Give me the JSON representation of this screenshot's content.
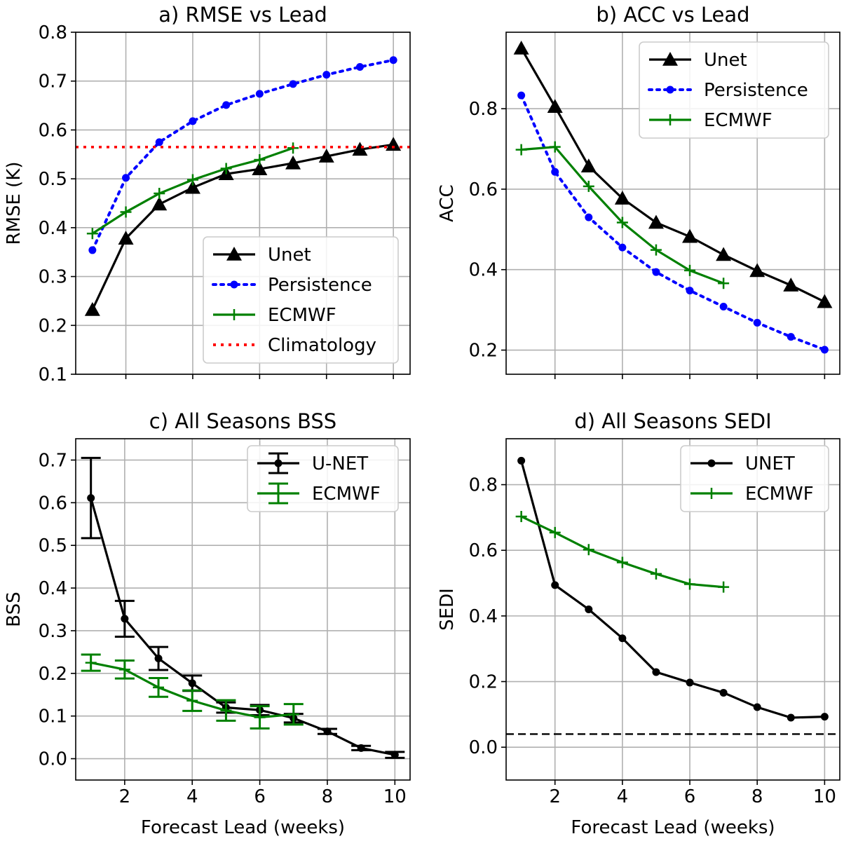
{
  "figure": {
    "xlabel_bottom": "Forecast Lead (weeks)"
  },
  "chart_data": [
    {
      "id": "a",
      "type": "line",
      "title": "a) RMSE vs Lead",
      "xlabel": "",
      "ylabel": "RMSE (K)",
      "xlim": [
        0.5,
        10.5
      ],
      "ylim": [
        0.1,
        0.8
      ],
      "xticks": [
        2,
        4,
        6,
        8,
        10
      ],
      "xtick_labels_visible": false,
      "yticks": [
        0.1,
        0.2,
        0.3,
        0.4,
        0.5,
        0.6,
        0.7,
        0.8
      ],
      "ytick_labels": [
        "0.1",
        "0.2",
        "0.3",
        "0.4",
        "0.5",
        "0.6",
        "0.7",
        "0.8"
      ],
      "grid": true,
      "legend_position": "lower-right",
      "series": [
        {
          "name": "Unet",
          "style": "solid-triangle",
          "color": "#000000",
          "x": [
            1.0,
            2.0,
            3.0,
            4.0,
            5.0,
            6.0,
            7.0,
            8.0,
            9.0,
            10.0
          ],
          "y": [
            0.232,
            0.378,
            0.448,
            0.482,
            0.51,
            0.52,
            0.532,
            0.546,
            0.56,
            0.57
          ]
        },
        {
          "name": "Persistence",
          "style": "dotted-circle",
          "color": "#0000ff",
          "x": [
            1.0,
            2.0,
            3.0,
            4.0,
            5.0,
            6.0,
            7.0,
            8.0,
            9.0,
            10.0
          ],
          "y": [
            0.354,
            0.502,
            0.575,
            0.618,
            0.651,
            0.674,
            0.694,
            0.713,
            0.729,
            0.743
          ]
        },
        {
          "name": "ECMWF",
          "style": "solid-plus",
          "color": "#008000",
          "x": [
            1.0,
            2.0,
            3.0,
            4.0,
            5.0,
            6.0,
            7.0
          ],
          "y": [
            0.388,
            0.432,
            0.47,
            0.498,
            0.521,
            0.539,
            0.563
          ]
        },
        {
          "name": "Climatology",
          "style": "dotted-hline",
          "color": "#ff0000",
          "x": [
            0.5,
            10.5
          ],
          "y": [
            0.565,
            0.565
          ]
        }
      ]
    },
    {
      "id": "b",
      "type": "line",
      "title": "b) ACC vs Lead",
      "xlabel": "",
      "ylabel": "ACC",
      "xlim": [
        0.55,
        10.45
      ],
      "ylim": [
        0.14,
        0.99
      ],
      "xticks": [
        2,
        4,
        6,
        8,
        10
      ],
      "xtick_labels_visible": false,
      "yticks": [
        0.2,
        0.4,
        0.6,
        0.8
      ],
      "ytick_labels": [
        "0.2",
        "0.4",
        "0.6",
        "0.8"
      ],
      "grid": true,
      "legend_position": "top-right",
      "series": [
        {
          "name": "Unet",
          "style": "solid-triangle",
          "color": "#000000",
          "x": [
            1,
            2,
            3,
            4,
            5,
            6,
            7,
            8,
            9,
            10
          ],
          "y": [
            0.95,
            0.805,
            0.657,
            0.577,
            0.517,
            0.482,
            0.437,
            0.397,
            0.361,
            0.32
          ]
        },
        {
          "name": "Persistence",
          "style": "dotted-circle",
          "color": "#0000ff",
          "x": [
            1,
            2,
            3,
            4,
            5,
            6,
            7,
            8,
            9,
            10
          ],
          "y": [
            0.833,
            0.643,
            0.53,
            0.455,
            0.394,
            0.348,
            0.308,
            0.268,
            0.233,
            0.201
          ]
        },
        {
          "name": "ECMWF",
          "style": "solid-plus",
          "color": "#008000",
          "x": [
            1,
            2,
            3,
            4,
            5,
            6,
            7
          ],
          "y": [
            0.698,
            0.705,
            0.607,
            0.517,
            0.449,
            0.398,
            0.366
          ]
        }
      ]
    },
    {
      "id": "c",
      "type": "line",
      "title": "c) All Seasons BSS",
      "xlabel": "Forecast Lead (weeks)",
      "ylabel": "BSS",
      "xlim": [
        0.55,
        10.45
      ],
      "ylim": [
        -0.05,
        0.75
      ],
      "xticks": [
        2,
        4,
        6,
        8,
        10
      ],
      "xtick_labels": [
        "2",
        "4",
        "6",
        "8",
        "10"
      ],
      "yticks": [
        0.0,
        0.1,
        0.2,
        0.3,
        0.4,
        0.5,
        0.6,
        0.7
      ],
      "ytick_labels": [
        "0.0",
        "0.1",
        "0.2",
        "0.3",
        "0.4",
        "0.5",
        "0.6",
        "0.7"
      ],
      "grid": true,
      "legend_position": "top-right",
      "series": [
        {
          "name": "U-NET",
          "style": "errorbar-dot",
          "color": "#000000",
          "x": [
            1,
            2,
            3,
            4,
            5,
            6,
            7,
            8,
            9,
            10
          ],
          "y": [
            0.611,
            0.328,
            0.235,
            0.177,
            0.12,
            0.114,
            0.095,
            0.064,
            0.025,
            0.009
          ],
          "yerr": [
            0.094,
            0.042,
            0.027,
            0.018,
            0.012,
            0.012,
            0.01,
            0.006,
            0.005,
            0.007
          ]
        },
        {
          "name": "ECMWF",
          "style": "errorbar-plus",
          "color": "#008000",
          "x": [
            1,
            2,
            3,
            4,
            5,
            6,
            7
          ],
          "y": [
            0.225,
            0.209,
            0.167,
            0.136,
            0.113,
            0.097,
            0.104
          ],
          "yerr": [
            0.019,
            0.021,
            0.022,
            0.024,
            0.024,
            0.026,
            0.024
          ]
        }
      ]
    },
    {
      "id": "d",
      "type": "line",
      "title": "d) All Seasons SEDI",
      "xlabel": "Forecast Lead (weeks)",
      "ylabel": "SEDI",
      "xlim": [
        0.55,
        10.45
      ],
      "ylim": [
        -0.1,
        0.94
      ],
      "xticks": [
        2,
        4,
        6,
        8,
        10
      ],
      "xtick_labels": [
        "2",
        "4",
        "6",
        "8",
        "10"
      ],
      "yticks": [
        0.0,
        0.2,
        0.4,
        0.6,
        0.8
      ],
      "ytick_labels": [
        "0.0",
        "0.2",
        "0.4",
        "0.6",
        "0.8"
      ],
      "grid": true,
      "legend_position": "top-right",
      "series": [
        {
          "name": "UNET",
          "style": "solid-dot",
          "color": "#000000",
          "x": [
            1,
            2,
            3,
            4,
            5,
            6,
            7,
            8,
            9,
            10
          ],
          "y": [
            0.873,
            0.494,
            0.42,
            0.332,
            0.229,
            0.197,
            0.166,
            0.122,
            0.09,
            0.093
          ]
        },
        {
          "name": "ECMWF",
          "style": "solid-plus",
          "color": "#008000",
          "x": [
            1,
            2,
            3,
            4,
            5,
            6,
            7
          ],
          "y": [
            0.703,
            0.654,
            0.602,
            0.563,
            0.528,
            0.497,
            0.488
          ]
        },
        {
          "name": "",
          "style": "dashed-hline",
          "color": "#000000",
          "x": [
            0.55,
            10.45
          ],
          "y": [
            0.04,
            0.04
          ]
        }
      ]
    }
  ]
}
